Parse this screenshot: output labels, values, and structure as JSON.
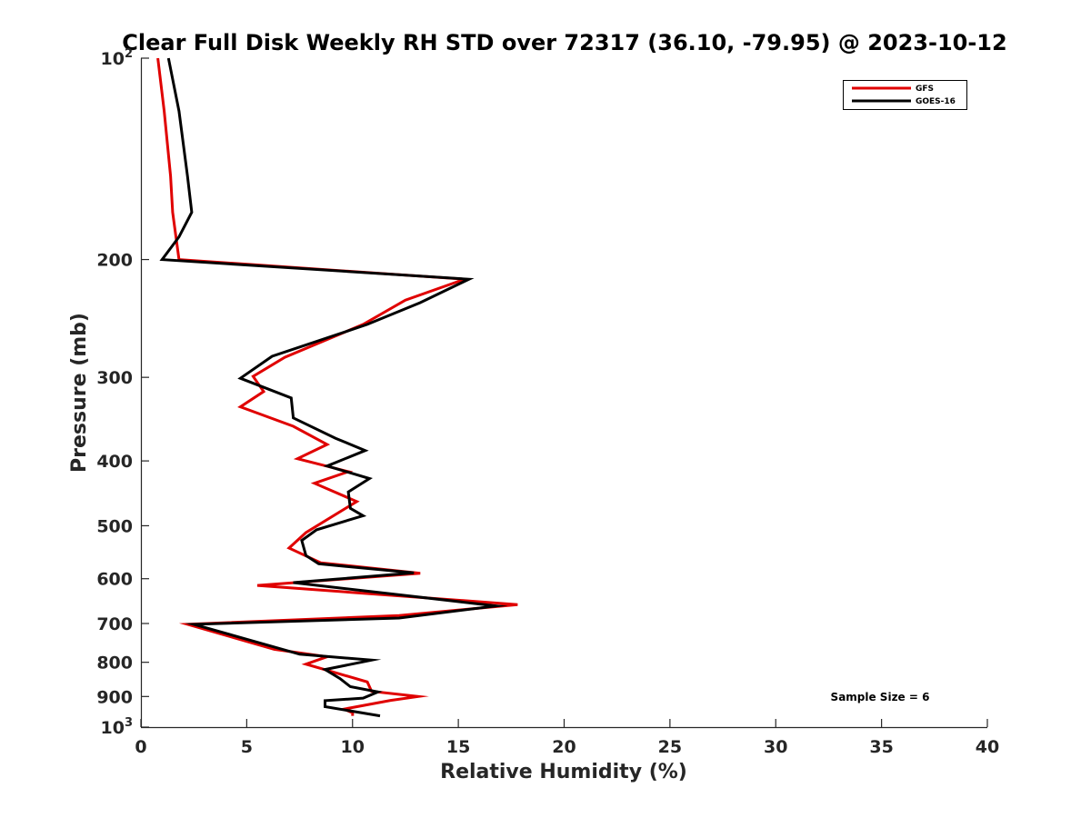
{
  "chart_data": {
    "type": "line",
    "title": "Clear Full Disk Weekly RH STD over 72317 (36.10, -79.95) @ 2023-10-12",
    "xlabel": "Relative Humidity (%)",
    "ylabel": "Pressure (mb)",
    "xlim": [
      0,
      40
    ],
    "ylim": [
      100,
      1000
    ],
    "y_scale": "log",
    "y_reversed": true,
    "grid": false,
    "legend_position": "top-right",
    "x_ticks": [
      0,
      5,
      10,
      15,
      20,
      25,
      30,
      35,
      40
    ],
    "y_ticks": [
      {
        "value": 100,
        "label": "10",
        "sup": "2"
      },
      {
        "value": 200,
        "label": "200",
        "sup": ""
      },
      {
        "value": 300,
        "label": "300",
        "sup": ""
      },
      {
        "value": 400,
        "label": "400",
        "sup": ""
      },
      {
        "value": 500,
        "label": "500",
        "sup": ""
      },
      {
        "value": 600,
        "label": "600",
        "sup": ""
      },
      {
        "value": 700,
        "label": "700",
        "sup": ""
      },
      {
        "value": 800,
        "label": "800",
        "sup": ""
      },
      {
        "value": 900,
        "label": "900",
        "sup": ""
      },
      {
        "value": 1000,
        "label": "10",
        "sup": "3"
      }
    ],
    "annotation": "Sample Size = 6",
    "series": [
      {
        "name": "GFS",
        "color": "#e00000",
        "points": [
          [
            0.8,
            100
          ],
          [
            1.1,
            120
          ],
          [
            1.4,
            150
          ],
          [
            1.5,
            170
          ],
          [
            1.8,
            200
          ],
          [
            15.3,
            214
          ],
          [
            12.5,
            230
          ],
          [
            10.5,
            250
          ],
          [
            6.8,
            280
          ],
          [
            5.3,
            299
          ],
          [
            5.8,
            315
          ],
          [
            4.7,
            332
          ],
          [
            7.2,
            355
          ],
          [
            8.8,
            378
          ],
          [
            7.4,
            397
          ],
          [
            9.8,
            415
          ],
          [
            8.2,
            432
          ],
          [
            10.2,
            460
          ],
          [
            7.8,
            512
          ],
          [
            7.0,
            540
          ],
          [
            8.5,
            568
          ],
          [
            13.2,
            589
          ],
          [
            5.5,
            614
          ],
          [
            17.8,
            656
          ],
          [
            15.5,
            666
          ],
          [
            12.2,
            681
          ],
          [
            2.2,
            702
          ],
          [
            4.2,
            732
          ],
          [
            6.3,
            765
          ],
          [
            8.8,
            785
          ],
          [
            7.8,
            805
          ],
          [
            10.7,
            856
          ],
          [
            10.9,
            884
          ],
          [
            13.1,
            900
          ],
          [
            11.8,
            912
          ],
          [
            9.6,
            940
          ],
          [
            10.0,
            952
          ],
          [
            10.0,
            962
          ]
        ]
      },
      {
        "name": "GOES-16",
        "color": "#000000",
        "points": [
          [
            1.3,
            100
          ],
          [
            1.8,
            120
          ],
          [
            2.2,
            150
          ],
          [
            2.4,
            170
          ],
          [
            1.8,
            185
          ],
          [
            1.0,
            200
          ],
          [
            15.5,
            214
          ],
          [
            13.2,
            232
          ],
          [
            10.7,
            250
          ],
          [
            6.2,
            279
          ],
          [
            4.7,
            301
          ],
          [
            7.1,
            322
          ],
          [
            7.2,
            345
          ],
          [
            9.2,
            370
          ],
          [
            10.6,
            386
          ],
          [
            8.8,
            407
          ],
          [
            10.8,
            425
          ],
          [
            9.8,
            445
          ],
          [
            9.9,
            471
          ],
          [
            10.5,
            483
          ],
          [
            8.3,
            507
          ],
          [
            7.6,
            526
          ],
          [
            7.8,
            554
          ],
          [
            8.4,
            570
          ],
          [
            12.9,
            588
          ],
          [
            7.2,
            608
          ],
          [
            16.8,
            659
          ],
          [
            12.2,
            687
          ],
          [
            2.5,
            702
          ],
          [
            7.5,
            778
          ],
          [
            10.9,
            794
          ],
          [
            8.7,
            820
          ],
          [
            9.4,
            846
          ],
          [
            9.9,
            870
          ],
          [
            11.2,
            886
          ],
          [
            10.5,
            905
          ],
          [
            8.7,
            913
          ],
          [
            8.7,
            932
          ],
          [
            11.3,
            962
          ]
        ]
      }
    ]
  }
}
